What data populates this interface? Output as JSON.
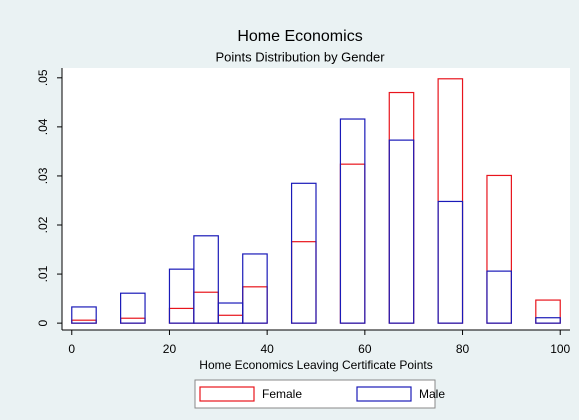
{
  "chart_data": {
    "type": "histogram",
    "title": "Home Economics",
    "subtitle": "Points Distribution by Gender",
    "xlabel": "Home Economics Leaving Certificate Points",
    "bins": [
      0,
      5,
      10,
      15,
      20,
      25,
      30,
      35,
      40,
      45,
      50,
      55,
      60,
      65,
      70,
      75,
      80,
      85,
      90,
      95,
      100
    ],
    "series": [
      {
        "name": "Female",
        "color": "#e8141c",
        "values": [
          0.0006,
          0,
          0.001,
          0,
          0.003,
          0.0063,
          0.0016,
          0.0074,
          0,
          0.0166,
          0,
          0.0324,
          0,
          0.047,
          0,
          0.0498,
          0,
          0.0301,
          0,
          0.0047
        ]
      },
      {
        "name": "Male",
        "color": "#1a1ab8",
        "values": [
          0.0033,
          0,
          0.0061,
          0,
          0.011,
          0.0178,
          0.0041,
          0.0141,
          0,
          0.0285,
          0,
          0.0416,
          0,
          0.0373,
          0,
          0.0248,
          0,
          0.0106,
          0,
          0.0011
        ]
      }
    ],
    "xlim": [
      -2,
      102
    ],
    "xticks": [
      0,
      20,
      40,
      60,
      80,
      100
    ],
    "ylim": [
      -0.0014,
      0.052
    ],
    "yticks": [
      0,
      {
        "value": 0.01,
        "label": ".01"
      },
      {
        "value": 0.02,
        "label": ".02"
      },
      {
        "value": 0.03,
        "label": ".03"
      },
      {
        "value": 0.04,
        "label": ".04"
      },
      {
        "value": 0.05,
        "label": ".05"
      }
    ],
    "legend": "bottom"
  }
}
